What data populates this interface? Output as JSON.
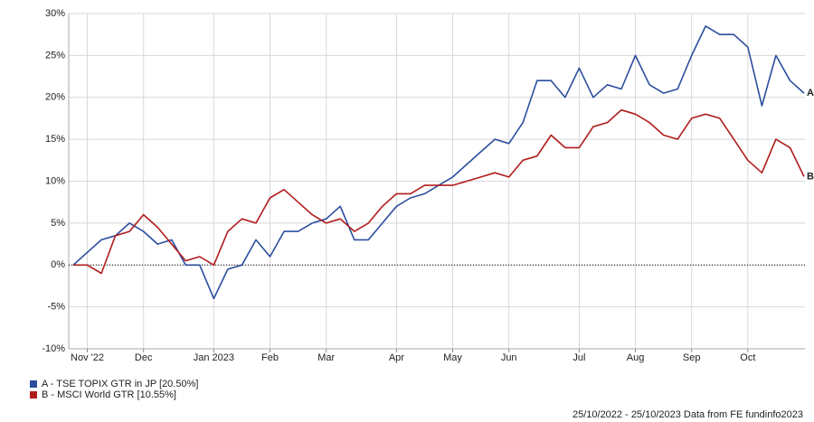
{
  "chart_data": {
    "type": "line",
    "categories": [
      null,
      "Nov '22",
      null,
      null,
      null,
      "Dec",
      null,
      null,
      null,
      null,
      "Jan 2023",
      null,
      null,
      null,
      "Feb",
      null,
      null,
      null,
      "Mar",
      null,
      null,
      null,
      null,
      "Apr",
      null,
      null,
      null,
      "May",
      null,
      null,
      null,
      "Jun",
      null,
      null,
      null,
      null,
      "Jul",
      null,
      null,
      null,
      "Aug",
      null,
      null,
      null,
      "Sep",
      null,
      null,
      null,
      "Oct",
      null,
      null,
      null,
      null
    ],
    "series": [
      {
        "name": "A - TSE TOPIX GTR in JP [20.50%]",
        "end_label": "A",
        "color": "#2b4e9e",
        "values": [
          0,
          1.5,
          3,
          3.5,
          5,
          4,
          2.5,
          3,
          0,
          0,
          -4,
          -0.5,
          0,
          3,
          1,
          4,
          4,
          5,
          5.5,
          7,
          3,
          3,
          5,
          7,
          8,
          8.5,
          9.5,
          10.5,
          12,
          13.5,
          15,
          14.5,
          17,
          22,
          22,
          20,
          23.5,
          20,
          21.5,
          21,
          25,
          21.5,
          20.5,
          21,
          25,
          28.5,
          27.5,
          27.5,
          26,
          19,
          25,
          22,
          20.5
        ]
      },
      {
        "name": "B - MSCI World GTR [10.55%]",
        "end_label": "B",
        "color": "#b01c1c",
        "values": [
          0,
          0,
          -1,
          3.5,
          4,
          6,
          4.5,
          2.5,
          0.5,
          1,
          0,
          4,
          5.5,
          5,
          8,
          9,
          7.5,
          6,
          5,
          5.5,
          4,
          5,
          7,
          8.5,
          8.5,
          9.5,
          9.5,
          9.5,
          10,
          10.5,
          11,
          10.5,
          12.5,
          13,
          15.5,
          14,
          14,
          16.5,
          17,
          18.5,
          18,
          17,
          15.5,
          15,
          17.5,
          18,
          17.5,
          15,
          12.5,
          11,
          15,
          14,
          10.55
        ]
      }
    ],
    "ylim": [
      -10,
      30
    ],
    "yticks": [
      {
        "value": -10,
        "label": "-10%"
      },
      {
        "value": -5,
        "label": "-5%"
      },
      {
        "value": 0,
        "label": "0%"
      },
      {
        "value": 5,
        "label": "5%"
      },
      {
        "value": 10,
        "label": "10%"
      },
      {
        "value": 15,
        "label": "15%"
      },
      {
        "value": 20,
        "label": "20%"
      },
      {
        "value": 25,
        "label": "25%"
      },
      {
        "value": 30,
        "label": "30%"
      }
    ],
    "grid": true,
    "footer": "25/10/2022 - 25/10/2023 Data from FE fundinfo2023"
  }
}
